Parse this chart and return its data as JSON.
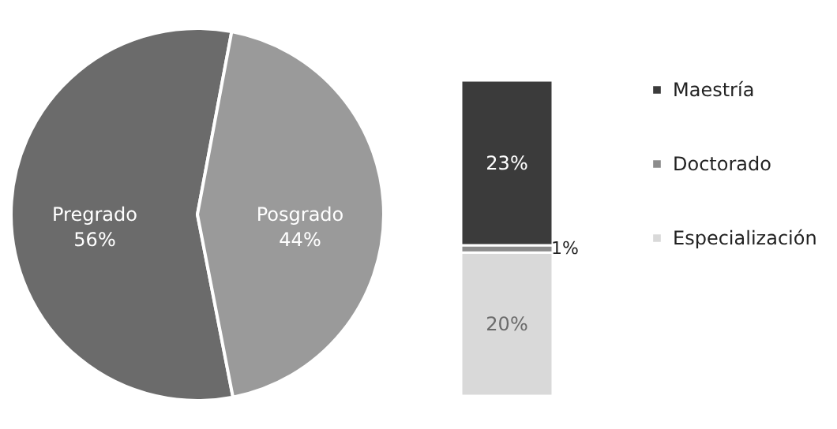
{
  "chart_data": [
    {
      "type": "pie",
      "categories": [
        "Pregrado",
        "Posgrado"
      ],
      "values": [
        56,
        44
      ],
      "colors": [
        "#6b6b6b",
        "#9a9a9a"
      ],
      "value_labels": [
        "56%",
        "44%"
      ]
    },
    {
      "type": "bar",
      "stacked": true,
      "categories": [
        null
      ],
      "legend": "right",
      "series": [
        {
          "name": "Especialización",
          "color": "#d9d9d9",
          "values": [
            20
          ],
          "value_labels": [
            "20%"
          ]
        },
        {
          "name": "Doctorado",
          "color": "#8c8c8c",
          "values": [
            1
          ],
          "value_labels": [
            "1%"
          ]
        },
        {
          "name": "Maestría",
          "color": "#3b3b3b",
          "values": [
            23
          ],
          "value_labels": [
            "23%"
          ]
        }
      ]
    }
  ]
}
